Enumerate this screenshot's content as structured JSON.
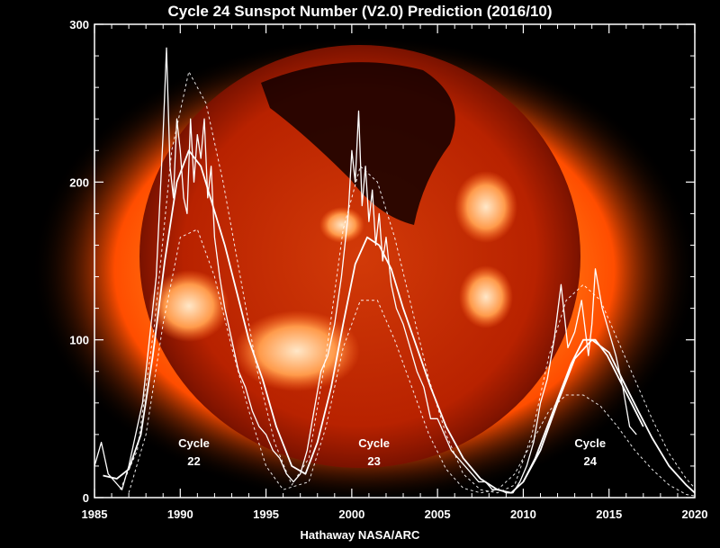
{
  "chart_data": {
    "type": "line",
    "title": "Cycle 24 Sunspot Number (V2.0) Prediction (2016/10)",
    "credit": "Hathaway  NASA/ARC",
    "xlabel": "",
    "ylabel": "",
    "xlim": [
      1985,
      2020
    ],
    "ylim": [
      0,
      300
    ],
    "x_ticks": [
      "1985",
      "1990",
      "1995",
      "2000",
      "2005",
      "2010",
      "2015",
      "2020"
    ],
    "y_ticks": [
      "0",
      "100",
      "200",
      "300"
    ],
    "grid": false,
    "colors": {
      "background": "#000000",
      "lines": "#ffffff",
      "sun_outer": "#ff5a00",
      "sun_core": "#b81e00"
    },
    "annotations": [
      {
        "line1": "Cycle",
        "line2": "22",
        "x": 1990.8,
        "y": 32
      },
      {
        "line1": "Cycle",
        "line2": "23",
        "x": 2001.3,
        "y": 32
      },
      {
        "line1": "Cycle",
        "line2": "24",
        "x": 2013.9,
        "y": 32
      }
    ],
    "series": [
      {
        "style": "monthly",
        "x": [
          1985.0,
          1985.4,
          1985.8,
          1986.2,
          1986.6,
          1987.0,
          1987.4,
          1987.8,
          1988.2,
          1988.6,
          1989.0,
          1989.2,
          1989.4,
          1989.6,
          1989.8,
          1990.0,
          1990.2,
          1990.4,
          1990.6,
          1990.8,
          1991.0,
          1991.2,
          1991.4,
          1991.6,
          1991.8,
          1992.0,
          1992.3,
          1992.6,
          1993.0,
          1993.4,
          1993.8,
          1994.2,
          1994.6,
          1995.0,
          1995.4,
          1995.8,
          1996.2,
          1996.6,
          1997.0,
          1997.4,
          1997.8,
          1998.2,
          1998.6,
          1999.0,
          1999.4,
          1999.8,
          2000.0,
          2000.2,
          2000.4,
          2000.6,
          2000.8,
          2001.0,
          2001.2,
          2001.4,
          2001.6,
          2001.8,
          2002.0,
          2002.3,
          2002.6,
          2003.0,
          2003.4,
          2003.8,
          2004.2,
          2004.6,
          2005.0,
          2005.4,
          2005.8,
          2006.2,
          2006.6,
          2007.0,
          2007.4,
          2007.8,
          2008.2,
          2008.6,
          2009.0,
          2009.4,
          2009.8,
          2010.2,
          2010.6,
          2011.0,
          2011.4,
          2011.8,
          2012.2,
          2012.6,
          2013.0,
          2013.4,
          2013.8,
          2014.0,
          2014.2,
          2014.6,
          2015.0,
          2015.4,
          2015.8,
          2016.2,
          2016.6
        ],
        "values": [
          20,
          35,
          15,
          10,
          5,
          20,
          40,
          60,
          100,
          140,
          230,
          285,
          210,
          190,
          240,
          220,
          190,
          180,
          240,
          200,
          230,
          215,
          240,
          190,
          210,
          165,
          140,
          120,
          100,
          80,
          70,
          55,
          45,
          40,
          30,
          25,
          15,
          10,
          15,
          30,
          55,
          80,
          90,
          110,
          140,
          180,
          220,
          200,
          245,
          185,
          210,
          175,
          195,
          160,
          180,
          150,
          165,
          135,
          120,
          110,
          95,
          80,
          70,
          50,
          50,
          40,
          30,
          25,
          20,
          15,
          10,
          10,
          5,
          5,
          3,
          3,
          10,
          20,
          35,
          60,
          75,
          100,
          135,
          95,
          105,
          125,
          90,
          110,
          145,
          120,
          105,
          90,
          70,
          45,
          40
        ]
      },
      {
        "style": "smoothed",
        "x": [
          1985.5,
          1986.3,
          1987.0,
          1987.7,
          1988.4,
          1989.1,
          1989.8,
          1990.5,
          1991.2,
          1991.9,
          1992.6,
          1993.3,
          1994.0,
          1994.8,
          1995.6,
          1996.5,
          1997.3,
          1998.0,
          1998.8,
          1999.5,
          2000.2,
          2000.9,
          2001.6,
          2002.3,
          2003.0,
          2003.8,
          2004.6,
          2005.5,
          2006.5,
          2007.5,
          2008.5,
          2009.3,
          2010.0,
          2010.7,
          2011.4,
          2012.1,
          2012.8,
          2013.5,
          2014.2,
          2014.9,
          2015.6,
          2016.3,
          2017.0
        ],
        "values": [
          14,
          12,
          18,
          40,
          90,
          150,
          200,
          220,
          210,
          185,
          160,
          130,
          100,
          75,
          45,
          20,
          15,
          35,
          70,
          110,
          148,
          165,
          160,
          145,
          120,
          95,
          70,
          45,
          25,
          12,
          5,
          3,
          10,
          25,
          45,
          65,
          85,
          100,
          100,
          90,
          75,
          60,
          45
        ]
      },
      {
        "style": "prediction",
        "x": [
          2010.0,
          2011.0,
          2012.0,
          2013.0,
          2014.0,
          2015.0,
          2016.0,
          2016.7,
          2017.5,
          2018.5,
          2019.5,
          2020.0
        ],
        "values": [
          10,
          30,
          60,
          88,
          100,
          92,
          70,
          55,
          38,
          20,
          8,
          3
        ]
      },
      {
        "style": "envelope-high",
        "x": [
          1986.5,
          1987.5,
          1988.5,
          1989.5,
          1990.5,
          1991.5,
          1992.5,
          1993.5,
          1994.5,
          1995.5,
          1996.5,
          1997.5,
          1998.5,
          1999.5,
          2000.5,
          2001.5,
          2002.5,
          2003.5,
          2004.5,
          2005.5,
          2006.5,
          2007.5,
          2008.5,
          2009.5,
          2010.5,
          2011.5,
          2012.5,
          2013.5,
          2014.5,
          2015.5,
          2016.5,
          2017.5,
          2018.5,
          2019.5,
          2020.0
        ],
        "values": [
          5,
          30,
          110,
          220,
          270,
          250,
          200,
          140,
          80,
          35,
          8,
          25,
          90,
          170,
          210,
          200,
          165,
          120,
          75,
          40,
          15,
          5,
          3,
          8,
          40,
          90,
          125,
          135,
          125,
          100,
          75,
          50,
          28,
          12,
          6
        ]
      },
      {
        "style": "envelope-low",
        "x": [
          1987.0,
          1988.0,
          1989.0,
          1990.0,
          1991.0,
          1992.0,
          1993.0,
          1994.0,
          1995.0,
          1996.0,
          1997.5,
          1998.5,
          1999.5,
          2000.5,
          2001.5,
          2002.5,
          2003.5,
          2004.5,
          2005.5,
          2006.5,
          2007.5,
          2008.5,
          2009.5,
          2010.5,
          2011.5,
          2012.5,
          2013.5,
          2014.5,
          2015.5,
          2016.5,
          2017.5,
          2018.5,
          2019.5,
          2020.0
        ],
        "values": [
          3,
          40,
          110,
          165,
          170,
          140,
          95,
          55,
          20,
          5,
          10,
          45,
          95,
          125,
          125,
          100,
          70,
          40,
          18,
          6,
          3,
          5,
          15,
          35,
          55,
          65,
          65,
          58,
          45,
          30,
          18,
          8,
          2,
          1
        ]
      }
    ]
  }
}
